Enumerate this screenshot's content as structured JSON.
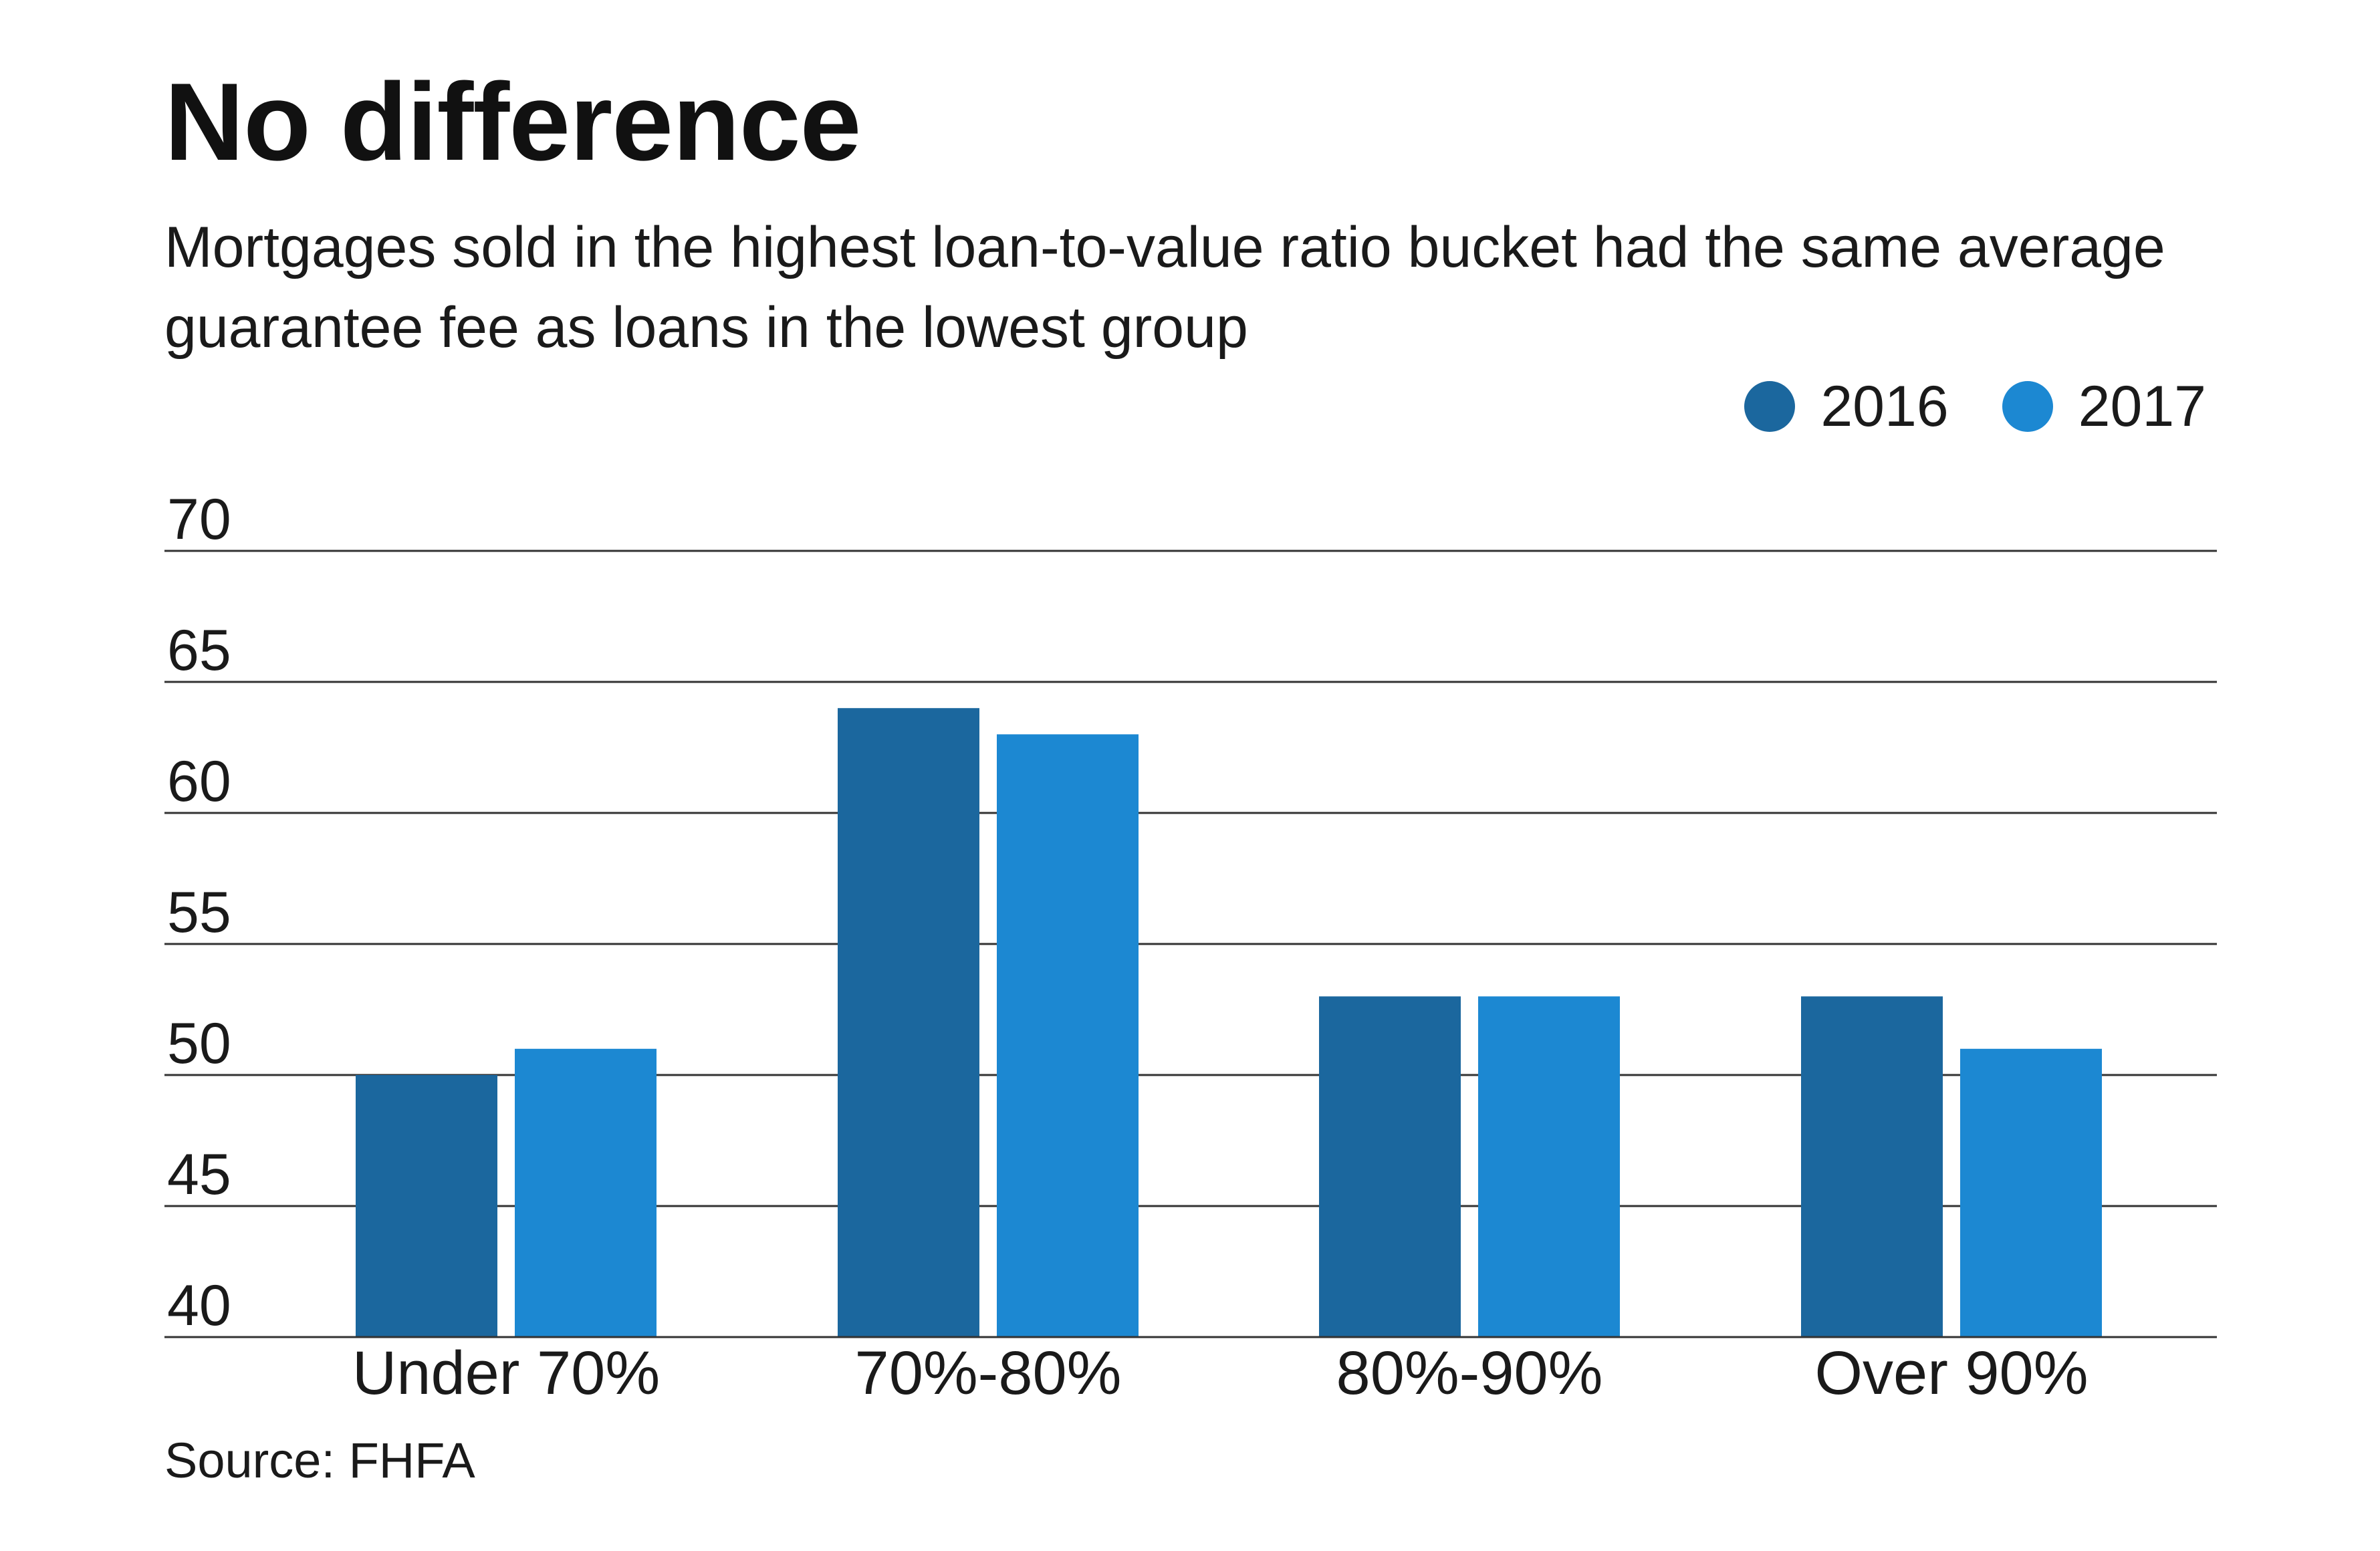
{
  "title": "No difference",
  "subtitle": "Mortgages sold in the highest loan-to-value ratio bucket had the same average guarantee fee as loans in the lowest group",
  "source": "Source: FHFA",
  "colors": {
    "series_2016": "#1b679e",
    "series_2017": "#1c88d2",
    "gridline": "#333333",
    "text": "#1a1a1a"
  },
  "legend": [
    {
      "label": "2016",
      "color": "#1b679e"
    },
    {
      "label": "2017",
      "color": "#1c88d2"
    }
  ],
  "chart_data": {
    "type": "bar",
    "title": "No difference",
    "subtitle": "Mortgages sold in the highest loan-to-value ratio bucket had the same average guarantee fee as loans in the lowest group",
    "categories": [
      "Under 70%",
      "70%-80%",
      "80%-90%",
      "Over 90%"
    ],
    "series": [
      {
        "name": "2016",
        "values": [
          50,
          64,
          53,
          53
        ]
      },
      {
        "name": "2017",
        "values": [
          51,
          63,
          53,
          51
        ]
      }
    ],
    "ylim": [
      40,
      70
    ],
    "yticks": [
      40,
      45,
      50,
      55,
      60,
      65,
      70
    ],
    "xlabel": "",
    "ylabel": "",
    "grid": true,
    "legend_position": "top-right"
  }
}
